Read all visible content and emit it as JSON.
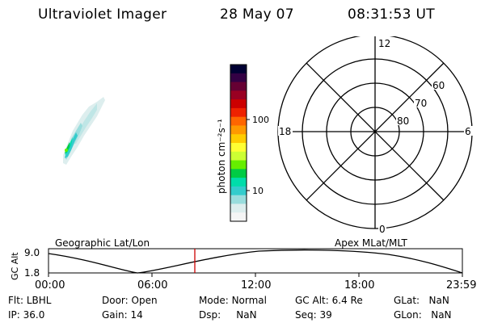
{
  "header": {
    "title": "Ultraviolet Imager",
    "date": "28 May 07",
    "time": "08:31:53 UT"
  },
  "colorbar": {
    "unit_label": "photon cm⁻²s⁻¹",
    "ticks": [
      "100",
      "10"
    ],
    "colors": [
      "#000033",
      "#330044",
      "#660033",
      "#990022",
      "#cc0000",
      "#ee2200",
      "#ff6600",
      "#ff9900",
      "#ffcc00",
      "#ffff33",
      "#ccff33",
      "#66ee00",
      "#00cc44",
      "#00ddaa",
      "#33cccc",
      "#99dddd",
      "#ddeeee",
      "#f5f5f5"
    ]
  },
  "polar": {
    "mlt_labels": {
      "top": "12",
      "right": "6",
      "bottom": "0",
      "left": "18"
    },
    "lat_labels": [
      "60",
      "70",
      "80"
    ]
  },
  "timeline": {
    "y_axis_title": "GC Alt",
    "y_ticks": [
      "9.0",
      "1.8"
    ],
    "left_label": "Geographic Lat/Lon",
    "right_label": "Apex MLat/MLT",
    "x_ticks": [
      "00:00",
      "06:00",
      "12:00",
      "18:00",
      "23:59"
    ],
    "marker_color": "#cc0000"
  },
  "info": {
    "row1": [
      {
        "label": "Flt:",
        "value": "LBHL"
      },
      {
        "label": "Door:",
        "value": "Open"
      },
      {
        "label": "Mode:",
        "value": "Normal"
      },
      {
        "label": "GC Alt:",
        "value": "6.4 Re"
      },
      {
        "label": "GLat:",
        "value": "NaN"
      }
    ],
    "row2": [
      {
        "label": "IP:",
        "value": "36.0"
      },
      {
        "label": "Gain:",
        "value": "14"
      },
      {
        "label": "Dsp:",
        "value": "NaN"
      },
      {
        "label": "Seq:",
        "value": "39"
      },
      {
        "label": "GLon:",
        "value": "NaN"
      }
    ]
  }
}
